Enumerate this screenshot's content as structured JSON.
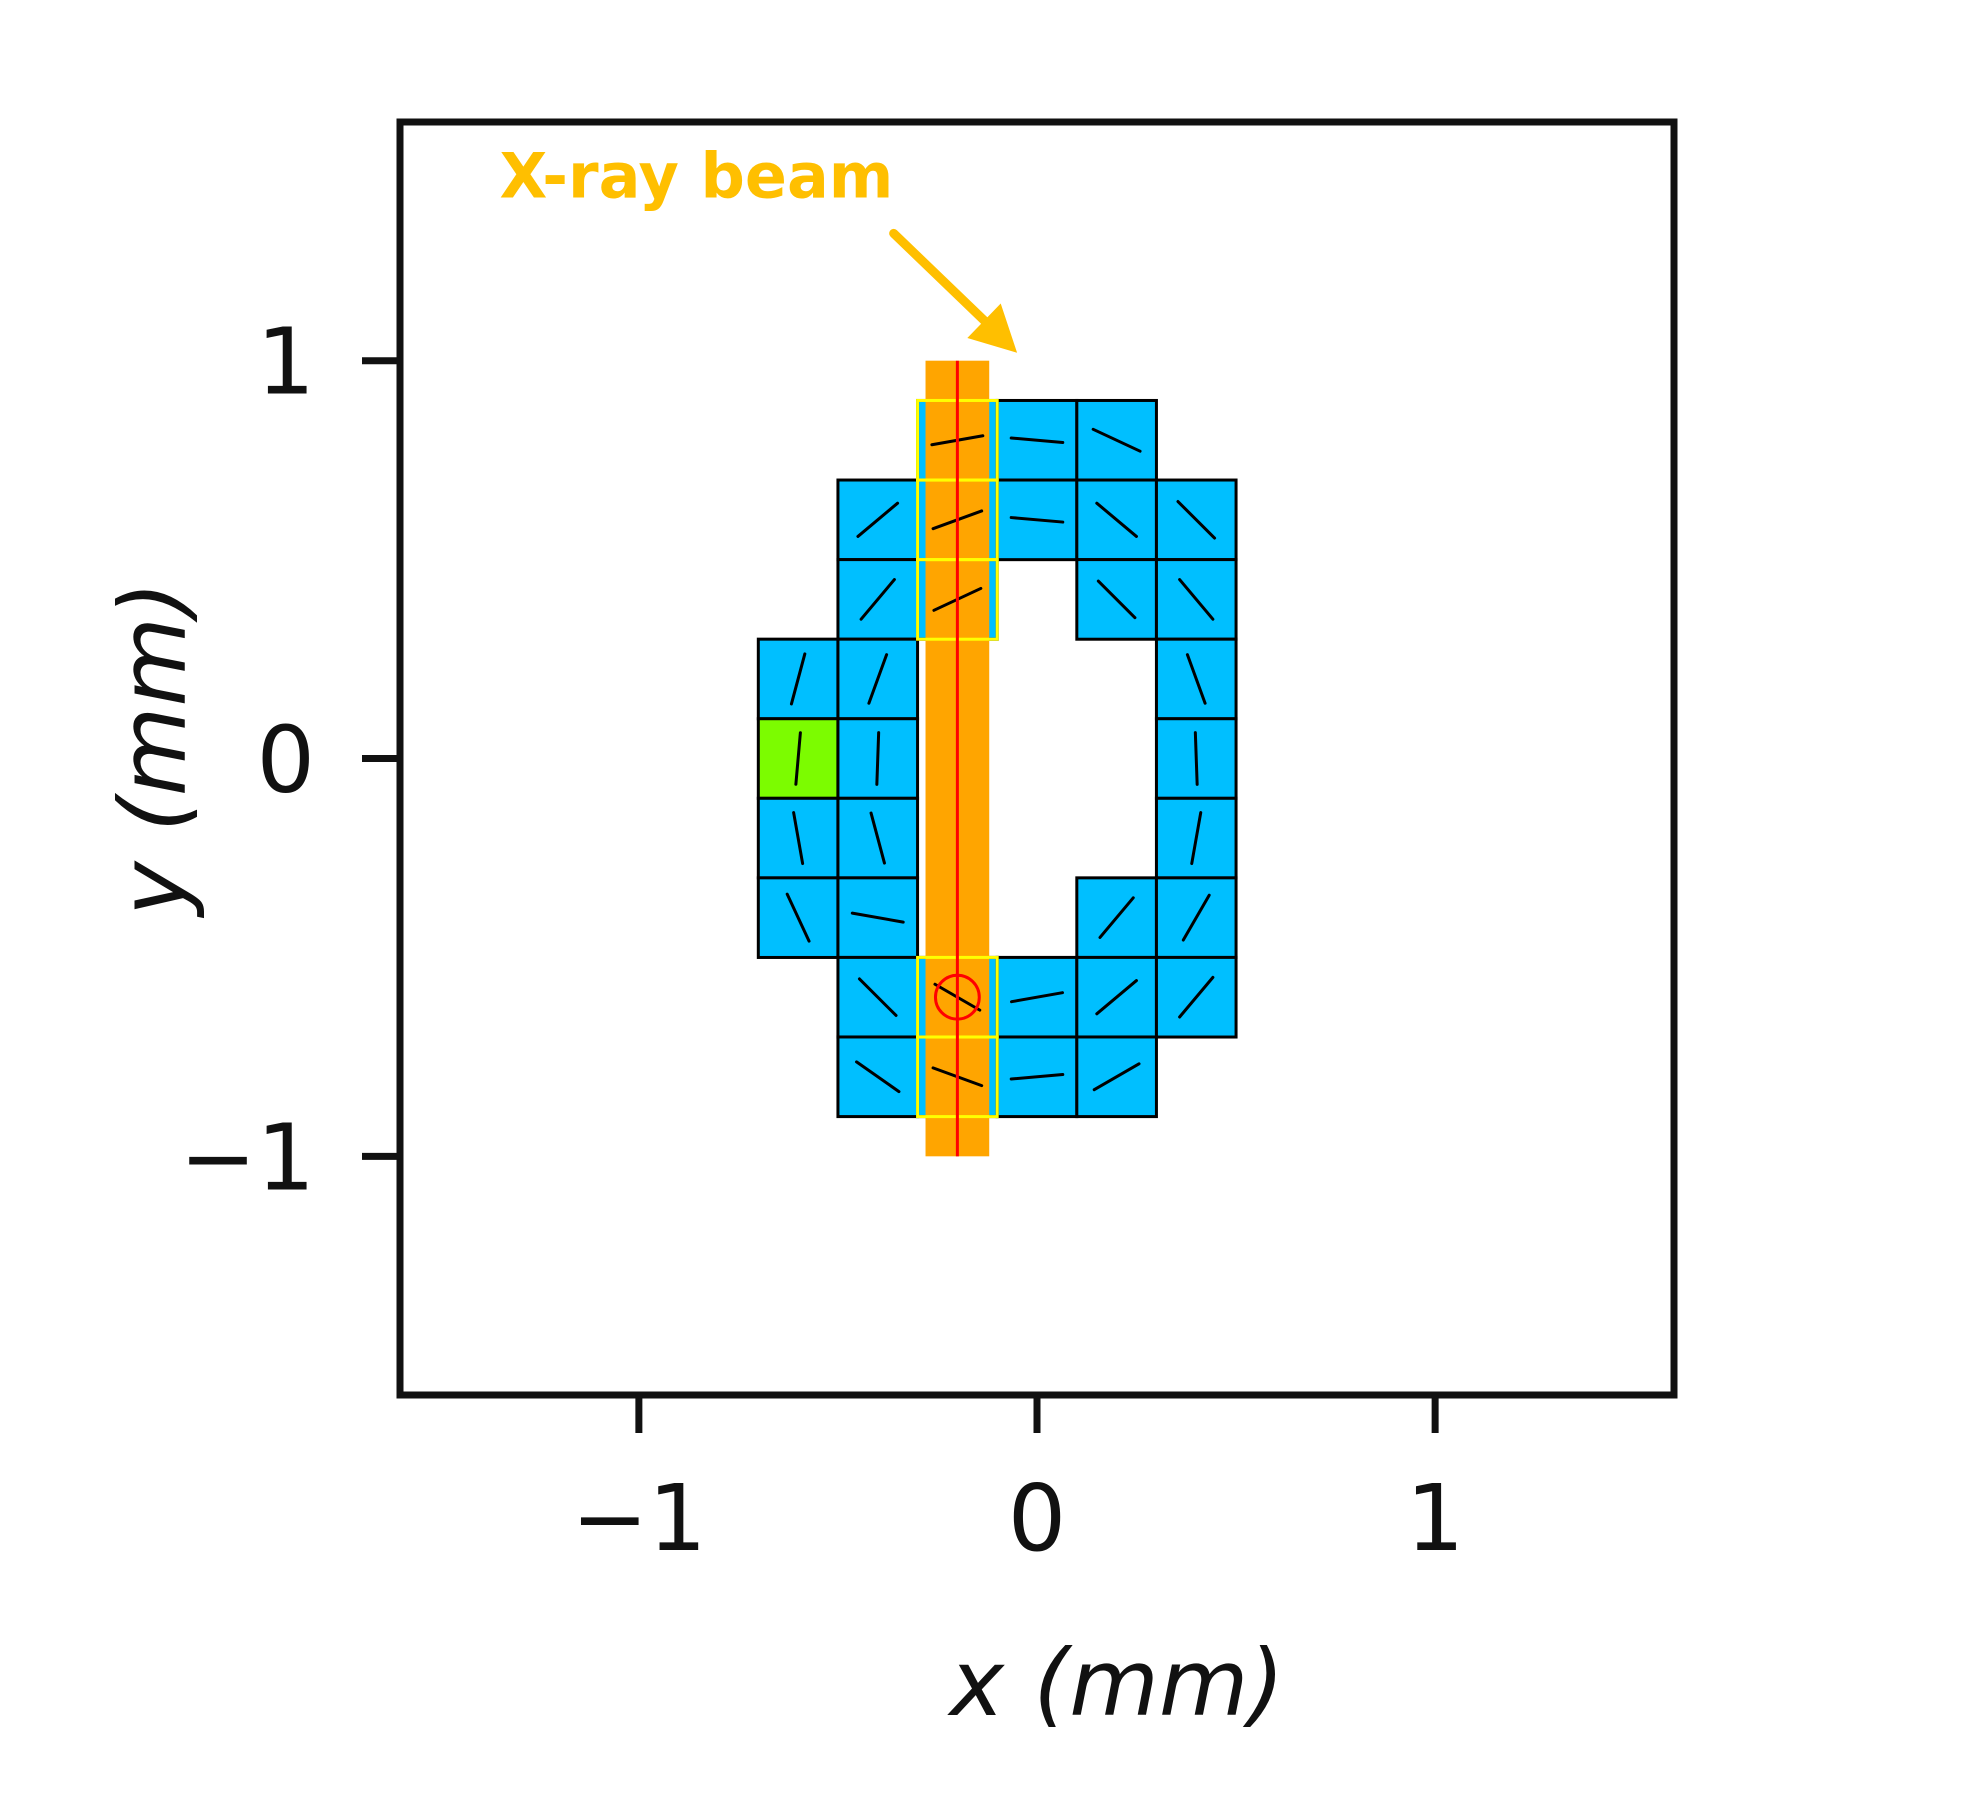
{
  "chart_data": {
    "type": "heatmap",
    "title": "",
    "xlabel": "x (mm)",
    "ylabel": "y (mm)",
    "xlim": [
      -1.6,
      1.6
    ],
    "ylim": [
      -1.6,
      1.6
    ],
    "xticks": [
      -1,
      0,
      1
    ],
    "yticks": [
      -1,
      0,
      1
    ],
    "xtick_labels": [
      "−1",
      "0",
      "1"
    ],
    "ytick_labels": [
      "1",
      "0",
      "−1"
    ],
    "grid": false,
    "cell_size": 0.2,
    "colors": {
      "cell": "#00bfff",
      "highlight_cell": "#7cfc00",
      "beam": "#ffa500",
      "beam_line": "#ff0000",
      "beam_cell_outline": "#ffff00",
      "annotation": "#ffbf00",
      "frame": "#111111"
    },
    "cells": [
      {
        "x": -0.2,
        "y": 0.8,
        "angle": 10
      },
      {
        "x": 0.0,
        "y": 0.8,
        "angle": -5
      },
      {
        "x": 0.2,
        "y": 0.8,
        "angle": -25
      },
      {
        "x": -0.4,
        "y": 0.6,
        "angle": 40
      },
      {
        "x": -0.2,
        "y": 0.6,
        "angle": 20
      },
      {
        "x": 0.0,
        "y": 0.6,
        "angle": -5
      },
      {
        "x": 0.2,
        "y": 0.6,
        "angle": -40
      },
      {
        "x": 0.4,
        "y": 0.6,
        "angle": -45
      },
      {
        "x": -0.4,
        "y": 0.4,
        "angle": 50
      },
      {
        "x": -0.2,
        "y": 0.4,
        "angle": 25
      },
      {
        "x": 0.2,
        "y": 0.4,
        "angle": -45
      },
      {
        "x": 0.4,
        "y": 0.4,
        "angle": -50
      },
      {
        "x": -0.6,
        "y": 0.2,
        "angle": 75
      },
      {
        "x": -0.4,
        "y": 0.2,
        "angle": 70
      },
      {
        "x": 0.4,
        "y": 0.2,
        "angle": -70
      },
      {
        "x": -0.6,
        "y": 0.0,
        "angle": 85,
        "highlight": true
      },
      {
        "x": -0.4,
        "y": 0.0,
        "angle": 88
      },
      {
        "x": 0.4,
        "y": 0.0,
        "angle": -88
      },
      {
        "x": -0.6,
        "y": -0.2,
        "angle": -80
      },
      {
        "x": -0.4,
        "y": -0.2,
        "angle": -75
      },
      {
        "x": 0.4,
        "y": -0.2,
        "angle": 80
      },
      {
        "x": -0.6,
        "y": -0.4,
        "angle": -65
      },
      {
        "x": -0.4,
        "y": -0.4,
        "angle": -10
      },
      {
        "x": 0.2,
        "y": -0.4,
        "angle": 50
      },
      {
        "x": 0.4,
        "y": -0.4,
        "angle": 60
      },
      {
        "x": -0.4,
        "y": -0.6,
        "angle": -45
      },
      {
        "x": -0.2,
        "y": -0.6,
        "angle": -30
      },
      {
        "x": 0.0,
        "y": -0.6,
        "angle": 10
      },
      {
        "x": 0.2,
        "y": -0.6,
        "angle": 40
      },
      {
        "x": 0.4,
        "y": -0.6,
        "angle": 50
      },
      {
        "x": -0.4,
        "y": -0.8,
        "angle": -35
      },
      {
        "x": -0.2,
        "y": -0.8,
        "angle": -20
      },
      {
        "x": 0.0,
        "y": -0.8,
        "angle": 5
      },
      {
        "x": 0.2,
        "y": -0.8,
        "angle": 30
      }
    ],
    "beam": {
      "x": -0.2,
      "width": 0.16,
      "y_range": [
        -1.0,
        1.0
      ],
      "label": "X-ray beam",
      "highlighted_cells": [
        {
          "x": -0.2,
          "y": 0.8
        },
        {
          "x": -0.2,
          "y": 0.6
        },
        {
          "x": -0.2,
          "y": 0.4
        },
        {
          "x": -0.2,
          "y": -0.6
        },
        {
          "x": -0.2,
          "y": -0.8
        }
      ],
      "marker": {
        "x": -0.2,
        "y": -0.6,
        "radius": 0.055
      }
    }
  }
}
